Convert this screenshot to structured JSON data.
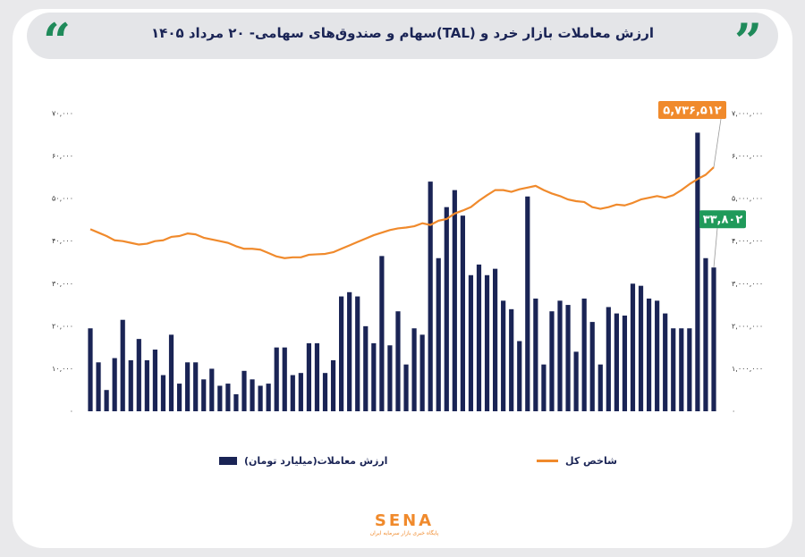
{
  "chart_data": {
    "type": "bar",
    "title": "ارزش معاملات بازار خرد و (TAL)سهام و صندوق‌های سهامی- ۲۰ مرداد ۱۴۰۵",
    "categories": [
      null,
      null,
      null,
      null,
      null,
      null,
      null,
      null,
      null,
      null,
      null,
      null,
      null,
      null,
      null,
      null,
      null,
      null,
      null,
      null,
      null,
      null,
      null,
      null,
      null,
      null,
      null,
      null,
      null,
      null,
      null,
      null,
      null,
      null,
      null,
      null,
      null,
      null,
      null,
      null,
      null,
      null,
      null,
      null,
      null,
      null,
      null,
      null,
      null,
      null,
      null,
      null,
      null,
      null,
      null,
      null,
      null,
      null,
      null,
      null,
      null,
      null,
      null,
      null,
      null,
      null,
      null,
      null,
      null,
      null,
      null,
      null,
      null,
      null,
      null,
      null,
      null,
      null
    ],
    "series": [
      {
        "name": "ارزش معاملات(میلیارد تومان)",
        "type": "bar",
        "color": "#1a2455",
        "values": [
          19500,
          11500,
          5000,
          12500,
          21500,
          12000,
          17000,
          12000,
          14500,
          8500,
          18000,
          6500,
          11500,
          11500,
          7500,
          10000,
          6000,
          6500,
          4000,
          9500,
          7500,
          6000,
          6500,
          15000,
          15000,
          8500,
          9000,
          16000,
          16000,
          9000,
          12000,
          27000,
          28000,
          27000,
          20000,
          16000,
          36500,
          15500,
          23500,
          11000,
          19500,
          18000,
          54000,
          36000,
          48000,
          52000,
          46000,
          32000,
          34500,
          32000,
          33500,
          26000,
          24000,
          16500,
          50500,
          26500,
          11000,
          23500,
          26000,
          25000,
          14000,
          26500,
          21000,
          11000,
          24500,
          23000,
          22500,
          30000,
          29500,
          26500,
          26000,
          23000,
          19500,
          19500,
          19500,
          65500,
          36000,
          33802
        ],
        "value_labels": [
          null,
          null,
          null,
          null,
          null,
          null,
          null,
          null,
          null,
          null,
          null,
          null,
          null,
          null,
          null,
          null,
          null,
          null,
          null,
          null,
          null,
          null,
          null,
          null,
          null,
          null,
          null,
          null,
          null,
          null,
          null,
          null,
          null,
          null,
          null,
          null,
          null,
          null,
          null,
          null,
          null,
          null,
          null,
          null,
          null,
          null,
          null,
          null,
          null,
          null,
          null,
          null,
          null,
          null,
          null,
          null,
          null,
          null,
          null,
          null,
          null,
          null,
          null,
          null,
          null,
          null,
          null,
          null,
          null,
          null,
          null,
          null,
          null,
          null,
          null,
          null,
          null,
          "۳۳,۸۰۲"
        ]
      },
      {
        "name": "شاخص کل",
        "type": "line",
        "color": "#f08a2c",
        "axis": "y2",
        "values": [
          4280000,
          4200000,
          4120000,
          4020000,
          4000000,
          3960000,
          3920000,
          3940000,
          4000000,
          4020000,
          4100000,
          4120000,
          4180000,
          4160000,
          4080000,
          4040000,
          4000000,
          3960000,
          3880000,
          3820000,
          3820000,
          3800000,
          3720000,
          3640000,
          3600000,
          3620000,
          3620000,
          3680000,
          3690000,
          3700000,
          3740000,
          3820000,
          3900000,
          3980000,
          4060000,
          4140000,
          4200000,
          4260000,
          4300000,
          4320000,
          4350000,
          4420000,
          4380000,
          4480000,
          4520000,
          4650000,
          4720000,
          4800000,
          4950000,
          5080000,
          5200000,
          5200000,
          5160000,
          5220000,
          5260000,
          5300000,
          5200000,
          5120000,
          5060000,
          4980000,
          4940000,
          4920000,
          4800000,
          4760000,
          4800000,
          4860000,
          4840000,
          4900000,
          4980000,
          5020000,
          5060000,
          5020000,
          5080000,
          5200000,
          5340000,
          5460000,
          5560000,
          5736512
        ],
        "value_labels": [
          null,
          null,
          null,
          null,
          null,
          null,
          null,
          null,
          null,
          null,
          null,
          null,
          null,
          null,
          null,
          null,
          null,
          null,
          null,
          null,
          null,
          null,
          null,
          null,
          null,
          null,
          null,
          null,
          null,
          null,
          null,
          null,
          null,
          null,
          null,
          null,
          null,
          null,
          null,
          null,
          null,
          null,
          null,
          null,
          null,
          null,
          null,
          null,
          null,
          null,
          null,
          null,
          null,
          null,
          null,
          null,
          null,
          null,
          null,
          null,
          null,
          null,
          null,
          null,
          null,
          null,
          null,
          null,
          null,
          null,
          null,
          null,
          null,
          null,
          null,
          null,
          null,
          "۵,۷۳۶,۵۱۲"
        ]
      }
    ],
    "ylim": [
      0,
      70000
    ],
    "yticks": [
      {
        "value": 0,
        "label": "۰"
      },
      {
        "value": 10000,
        "label": "۱۰,۰۰۰"
      },
      {
        "value": 20000,
        "label": "۲۰,۰۰۰"
      },
      {
        "value": 30000,
        "label": "۳۰,۰۰۰"
      },
      {
        "value": 40000,
        "label": "۴۰,۰۰۰"
      },
      {
        "value": 50000,
        "label": "۵۰,۰۰۰"
      },
      {
        "value": 60000,
        "label": "۶۰,۰۰۰"
      },
      {
        "value": 70000,
        "label": "۷۰,۰۰۰"
      }
    ],
    "y2lim": [
      0,
      7000000
    ],
    "y2ticks": [
      {
        "value": 0,
        "label": "۰"
      },
      {
        "value": 1000000,
        "label": "۱,۰۰۰,۰۰۰"
      },
      {
        "value": 2000000,
        "label": "۲,۰۰۰,۰۰۰"
      },
      {
        "value": 3000000,
        "label": "۳,۰۰۰,۰۰۰"
      },
      {
        "value": 4000000,
        "label": "۴,۰۰۰,۰۰۰"
      },
      {
        "value": 5000000,
        "label": "۵,۰۰۰,۰۰۰"
      },
      {
        "value": 6000000,
        "label": "۶,۰۰۰,۰۰۰"
      },
      {
        "value": 7000000,
        "label": "۷,۰۰۰,۰۰۰"
      }
    ],
    "grid": false
  },
  "logo": {
    "text": "SENA",
    "subtitle": "پایگاه خبری بازار سرمایه ایران"
  }
}
